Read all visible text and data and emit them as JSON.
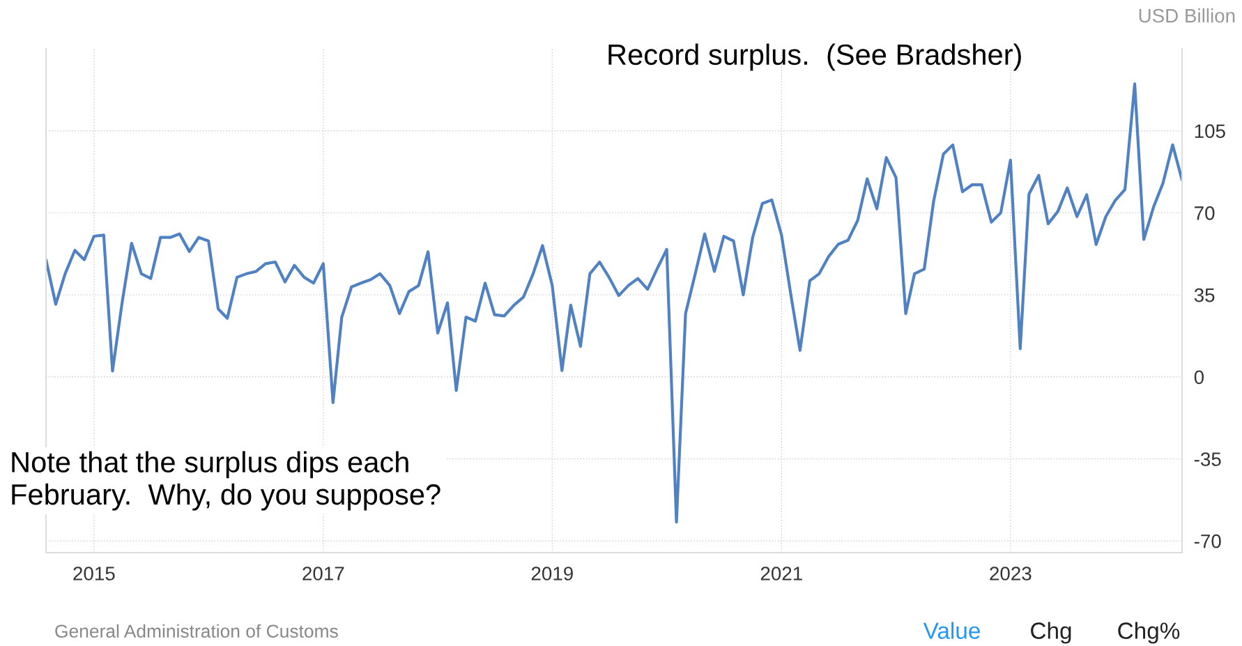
{
  "chart_data": {
    "type": "line",
    "ylabel": "USD Billion",
    "x": [
      "2014-08",
      "2014-09",
      "2014-10",
      "2014-11",
      "2014-12",
      "2015-01",
      "2015-02",
      "2015-03",
      "2015-04",
      "2015-05",
      "2015-06",
      "2015-07",
      "2015-08",
      "2015-09",
      "2015-10",
      "2015-11",
      "2015-12",
      "2016-01",
      "2016-02",
      "2016-03",
      "2016-04",
      "2016-05",
      "2016-06",
      "2016-07",
      "2016-08",
      "2016-09",
      "2016-10",
      "2016-11",
      "2016-12",
      "2017-01",
      "2017-02",
      "2017-03",
      "2017-04",
      "2017-05",
      "2017-06",
      "2017-07",
      "2017-08",
      "2017-09",
      "2017-10",
      "2017-11",
      "2017-12",
      "2018-01",
      "2018-02",
      "2018-03",
      "2018-04",
      "2018-05",
      "2018-06",
      "2018-07",
      "2018-08",
      "2018-09",
      "2018-10",
      "2018-11",
      "2018-12",
      "2019-01",
      "2019-02",
      "2019-03",
      "2019-04",
      "2019-05",
      "2019-06",
      "2019-07",
      "2019-08",
      "2019-09",
      "2019-10",
      "2019-11",
      "2019-12",
      "2020-01",
      "2020-02",
      "2020-03",
      "2020-04",
      "2020-05",
      "2020-06",
      "2020-07",
      "2020-08",
      "2020-09",
      "2020-10",
      "2020-11",
      "2020-12",
      "2021-01",
      "2021-02",
      "2021-03",
      "2021-04",
      "2021-05",
      "2021-06",
      "2021-07",
      "2021-08",
      "2021-09",
      "2021-10",
      "2021-11",
      "2021-12",
      "2022-01",
      "2022-02",
      "2022-03",
      "2022-04",
      "2022-05",
      "2022-06",
      "2022-07",
      "2022-08",
      "2022-09",
      "2022-10",
      "2022-11",
      "2022-12",
      "2023-01",
      "2023-02",
      "2023-03",
      "2023-04",
      "2023-05",
      "2023-06",
      "2023-07",
      "2023-08",
      "2023-09",
      "2023-10",
      "2023-11",
      "2023-12",
      "2024-01",
      "2024-02",
      "2024-03",
      "2024-04",
      "2024-05",
      "2024-06",
      "2024-07"
    ],
    "series": [
      {
        "color": "#4f81c3",
        "values": [
          50,
          31,
          44,
          54,
          50,
          60,
          60.5,
          2.5,
          32,
          57,
          44,
          42,
          59.5,
          59.5,
          61,
          53.5,
          59.5,
          58,
          29,
          25,
          42.5,
          44,
          45,
          48.3,
          49,
          40.5,
          47.6,
          42.5,
          40,
          48.3,
          -11,
          25.5,
          38.4,
          40,
          41.5,
          44,
          39,
          27,
          36.4,
          39,
          53.4,
          18.7,
          31.6,
          -5.8,
          25.5,
          23.8,
          40,
          26.5,
          26,
          30.6,
          34,
          44,
          56,
          39,
          2.7,
          30.6,
          13,
          44,
          49,
          42.5,
          34.7,
          39,
          42,
          37.4,
          46,
          54.4,
          -62,
          27,
          44,
          61,
          45,
          60,
          58,
          35,
          59.5,
          74,
          75.5,
          60.5,
          34,
          11.3,
          41,
          44,
          51.5,
          56.6,
          58.3,
          66.8,
          84.5,
          71.7,
          93.6,
          85,
          27,
          44,
          46,
          75,
          95,
          99,
          79,
          82,
          82,
          66,
          70,
          92.5,
          12,
          78,
          86,
          65.3,
          70.6,
          80.6,
          68.4,
          77.7,
          56.5,
          68.4,
          75.3,
          80,
          125,
          58.6,
          72.4,
          82.6,
          99,
          84
        ]
      }
    ],
    "xlim": [
      "2014-08",
      "2024-07"
    ],
    "xticks": [
      "2015",
      "2017",
      "2019",
      "2021",
      "2023"
    ],
    "ylim": [
      -75,
      140
    ],
    "yticks": [
      -70,
      -35,
      0,
      35,
      70,
      105
    ],
    "grid": true,
    "line_style": "solid",
    "marker": "none",
    "annotations": [
      "Record surplus.  (See Bradsher)",
      "Note that the surplus dips each\nFebruary.  Why, do you suppose?",
      "General Administration of Customs",
      "Value",
      "Chg",
      "Chg%"
    ]
  }
}
